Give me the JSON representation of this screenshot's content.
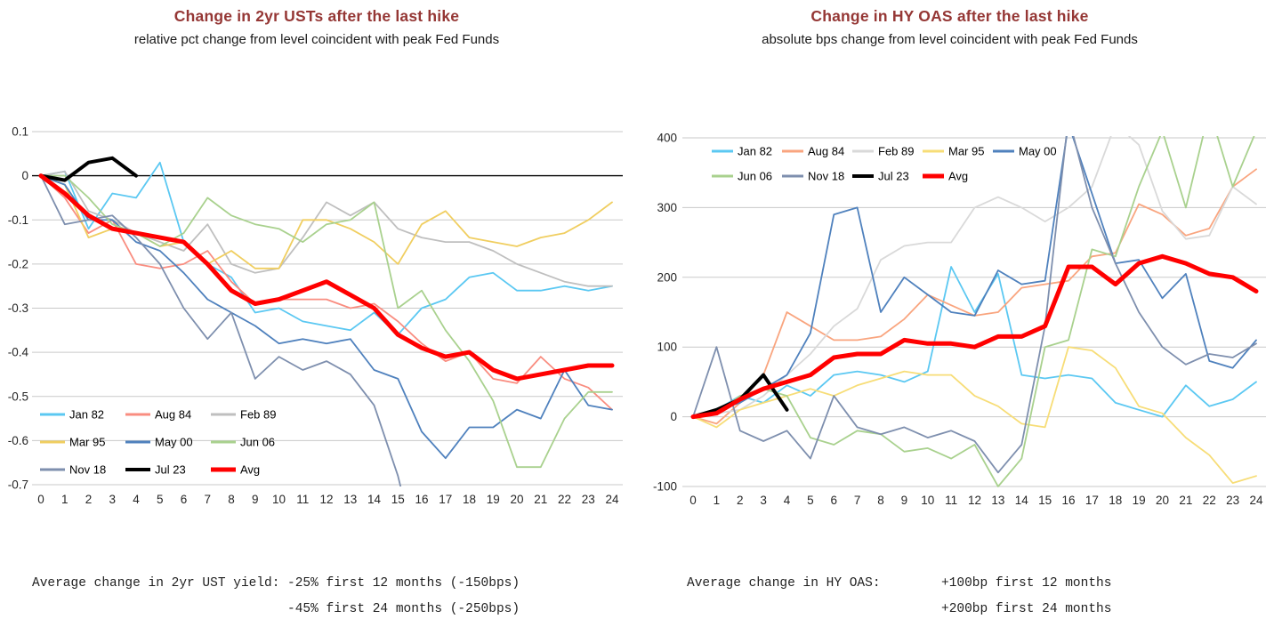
{
  "page": {
    "background": "#ffffff"
  },
  "chart_data": [
    {
      "id": "ust-change",
      "type": "line",
      "title": "Change in 2yr USTs after the last hike",
      "subtitle": "relative pct change from level coincident with peak Fed Funds",
      "title_color": "#953735",
      "x": [
        0,
        1,
        2,
        3,
        4,
        5,
        6,
        7,
        8,
        9,
        10,
        11,
        12,
        13,
        14,
        15,
        16,
        17,
        18,
        19,
        20,
        21,
        22,
        23,
        24
      ],
      "ylim": [
        -0.7,
        0.1
      ],
      "ytick_values": [
        0.1,
        0,
        -0.1,
        -0.2,
        -0.3,
        -0.4,
        -0.5,
        -0.6,
        -0.7
      ],
      "ytick_labels": [
        "0.1",
        "0",
        "-0.1",
        "-0.2",
        "-0.3",
        "-0.4",
        "-0.5",
        "-0.6",
        "-0.7"
      ],
      "zero_line": true,
      "grid": true,
      "legend_position": "bottom-left",
      "series": [
        {
          "name": "Jan 82",
          "color": "#5BC8F2",
          "width": 1.8,
          "values": [
            0,
            0.01,
            -0.12,
            -0.04,
            -0.05,
            0.03,
            -0.15,
            -0.2,
            -0.23,
            -0.31,
            -0.3,
            -0.33,
            -0.34,
            -0.35,
            -0.31,
            -0.36,
            -0.3,
            -0.28,
            -0.23,
            -0.22,
            -0.26,
            -0.26,
            -0.25,
            -0.26,
            -0.25
          ]
        },
        {
          "name": "Aug 84",
          "color": "#F98D80",
          "width": 1.8,
          "values": [
            0,
            -0.05,
            -0.13,
            -0.1,
            -0.2,
            -0.21,
            -0.2,
            -0.17,
            -0.24,
            -0.29,
            -0.28,
            -0.28,
            -0.28,
            -0.3,
            -0.29,
            -0.33,
            -0.38,
            -0.42,
            -0.4,
            -0.46,
            -0.47,
            -0.41,
            -0.46,
            -0.48,
            -0.53
          ]
        },
        {
          "name": "Feb 89",
          "color": "#BFBFBF",
          "width": 1.8,
          "values": [
            0,
            0.01,
            -0.08,
            -0.1,
            -0.13,
            -0.15,
            -0.17,
            -0.11,
            -0.2,
            -0.22,
            -0.21,
            -0.14,
            -0.06,
            -0.09,
            -0.06,
            -0.12,
            -0.14,
            -0.15,
            -0.15,
            -0.17,
            -0.2,
            -0.22,
            -0.24,
            -0.25,
            -0.25
          ]
        },
        {
          "name": "Mar 95",
          "color": "#F0CE60",
          "width": 1.8,
          "values": [
            0,
            -0.02,
            -0.14,
            -0.12,
            -0.13,
            -0.16,
            -0.15,
            -0.2,
            -0.17,
            -0.21,
            -0.21,
            -0.1,
            -0.1,
            -0.12,
            -0.15,
            -0.2,
            -0.11,
            -0.08,
            -0.14,
            -0.15,
            -0.16,
            -0.14,
            -0.13,
            -0.1,
            -0.06
          ]
        },
        {
          "name": "May 00",
          "color": "#4F81BD",
          "width": 1.8,
          "values": [
            0,
            -0.02,
            -0.1,
            -0.1,
            -0.15,
            -0.17,
            -0.22,
            -0.28,
            -0.31,
            -0.34,
            -0.38,
            -0.37,
            -0.38,
            -0.37,
            -0.44,
            -0.46,
            -0.58,
            -0.64,
            -0.57,
            -0.57,
            -0.53,
            -0.55,
            -0.44,
            -0.52,
            -0.53
          ]
        },
        {
          "name": "Jun 06",
          "color": "#A9D18E",
          "width": 1.8,
          "values": [
            0,
            0.0,
            -0.05,
            -0.11,
            -0.13,
            -0.16,
            -0.13,
            -0.05,
            -0.09,
            -0.11,
            -0.12,
            -0.15,
            -0.11,
            -0.1,
            -0.06,
            -0.3,
            -0.26,
            -0.35,
            -0.42,
            -0.51,
            -0.66,
            -0.66,
            -0.55,
            -0.49,
            -0.49
          ]
        },
        {
          "name": "Nov 18",
          "color": "#7E8FAE",
          "width": 1.8,
          "values": [
            0,
            -0.11,
            -0.1,
            -0.09,
            -0.14,
            -0.2,
            -0.3,
            -0.37,
            -0.31,
            -0.46,
            -0.41,
            -0.44,
            -0.42,
            -0.45,
            -0.52,
            -0.68,
            -0.9,
            null,
            null,
            null,
            null,
            null,
            null,
            null,
            null
          ]
        },
        {
          "name": "Jul 23",
          "color": "#000000",
          "width": 4,
          "values": [
            0,
            -0.01,
            0.03,
            0.04,
            0.0,
            null,
            null,
            null,
            null,
            null,
            null,
            null,
            null,
            null,
            null,
            null,
            null,
            null,
            null,
            null,
            null,
            null,
            null,
            null,
            null
          ]
        },
        {
          "name": "Avg",
          "color": "#FF0000",
          "width": 5,
          "values": [
            0,
            -0.04,
            -0.09,
            -0.12,
            -0.13,
            -0.14,
            -0.15,
            -0.2,
            -0.26,
            -0.29,
            -0.28,
            -0.26,
            -0.24,
            -0.27,
            -0.3,
            -0.36,
            -0.39,
            -0.41,
            -0.4,
            -0.44,
            -0.46,
            -0.45,
            -0.44,
            -0.43,
            -0.43
          ]
        }
      ],
      "footer": {
        "label": "Average change in 2yr UST yield:",
        "line1": "-25% first 12 months (-150bps)",
        "line2": "-45% first 24 months (-250bps)"
      }
    },
    {
      "id": "hy-oas-change",
      "type": "line",
      "title": "Change in HY OAS after the last hike",
      "subtitle": "absolute bps change from level coincident with peak Fed Funds",
      "title_color": "#953735",
      "x": [
        0,
        1,
        2,
        3,
        4,
        5,
        6,
        7,
        8,
        9,
        10,
        11,
        12,
        13,
        14,
        15,
        16,
        17,
        18,
        19,
        20,
        21,
        22,
        23,
        24
      ],
      "ylim": [
        -100,
        400
      ],
      "ytick_values": [
        400,
        300,
        200,
        100,
        0,
        -100
      ],
      "ytick_labels": [
        "400",
        "300",
        "200",
        "100",
        "0",
        "-100"
      ],
      "zero_line": false,
      "grid": true,
      "legend_position": "top",
      "series": [
        {
          "name": "Jan 82",
          "color": "#5BC8F2",
          "width": 1.8,
          "values": [
            0,
            10,
            30,
            20,
            45,
            30,
            60,
            65,
            60,
            50,
            65,
            215,
            150,
            205,
            60,
            55,
            60,
            55,
            20,
            10,
            0,
            45,
            15,
            25,
            50
          ]
        },
        {
          "name": "Aug 84",
          "color": "#F9A57F",
          "width": 1.8,
          "values": [
            0,
            -10,
            20,
            60,
            150,
            130,
            110,
            110,
            115,
            140,
            175,
            160,
            145,
            150,
            185,
            190,
            195,
            230,
            235,
            305,
            290,
            260,
            270,
            330,
            355
          ]
        },
        {
          "name": "Feb 89",
          "color": "#D9D9D9",
          "width": 1.8,
          "values": [
            0,
            5,
            10,
            30,
            60,
            90,
            130,
            155,
            225,
            245,
            250,
            250,
            300,
            315,
            300,
            280,
            300,
            330,
            420,
            390,
            295,
            255,
            260,
            330,
            305
          ]
        },
        {
          "name": "Mar 95",
          "color": "#F7DD77",
          "width": 1.8,
          "values": [
            0,
            -15,
            10,
            20,
            30,
            40,
            30,
            45,
            55,
            65,
            60,
            60,
            30,
            15,
            -10,
            -15,
            100,
            95,
            70,
            15,
            5,
            -30,
            -55,
            -95,
            -85
          ]
        },
        {
          "name": "May 00",
          "color": "#4F81BD",
          "width": 1.8,
          "values": [
            0,
            10,
            20,
            40,
            60,
            120,
            290,
            300,
            150,
            200,
            175,
            150,
            145,
            210,
            190,
            195,
            420,
            320,
            220,
            225,
            170,
            205,
            80,
            70,
            110
          ]
        },
        {
          "name": "Jun 06",
          "color": "#A9D18E",
          "width": 1.8,
          "values": [
            0,
            5,
            30,
            40,
            30,
            -30,
            -40,
            -20,
            -25,
            -50,
            -45,
            -60,
            -40,
            -100,
            -60,
            100,
            110,
            240,
            230,
            330,
            410,
            300,
            440,
            330,
            410
          ]
        },
        {
          "name": "Nov 18",
          "color": "#7E8FAE",
          "width": 1.8,
          "values": [
            0,
            100,
            -20,
            -35,
            -20,
            -60,
            30,
            -15,
            -25,
            -15,
            -30,
            -20,
            -35,
            -80,
            -40,
            130,
            430,
            300,
            220,
            150,
            100,
            75,
            90,
            85,
            105
          ]
        },
        {
          "name": "Jul 23",
          "color": "#000000",
          "width": 4,
          "values": [
            0,
            10,
            25,
            60,
            10,
            null,
            null,
            null,
            null,
            null,
            null,
            null,
            null,
            null,
            null,
            null,
            null,
            null,
            null,
            null,
            null,
            null,
            null,
            null,
            null
          ]
        },
        {
          "name": "Avg",
          "color": "#FF0000",
          "width": 5,
          "values": [
            0,
            5,
            25,
            40,
            50,
            60,
            85,
            90,
            90,
            110,
            105,
            105,
            100,
            115,
            115,
            130,
            215,
            215,
            190,
            220,
            230,
            220,
            205,
            200,
            180
          ]
        }
      ],
      "footer": {
        "label": "Average change in HY OAS:",
        "line1": "+100bp first 12 months",
        "line2": "+200bp first 24 months"
      }
    }
  ]
}
